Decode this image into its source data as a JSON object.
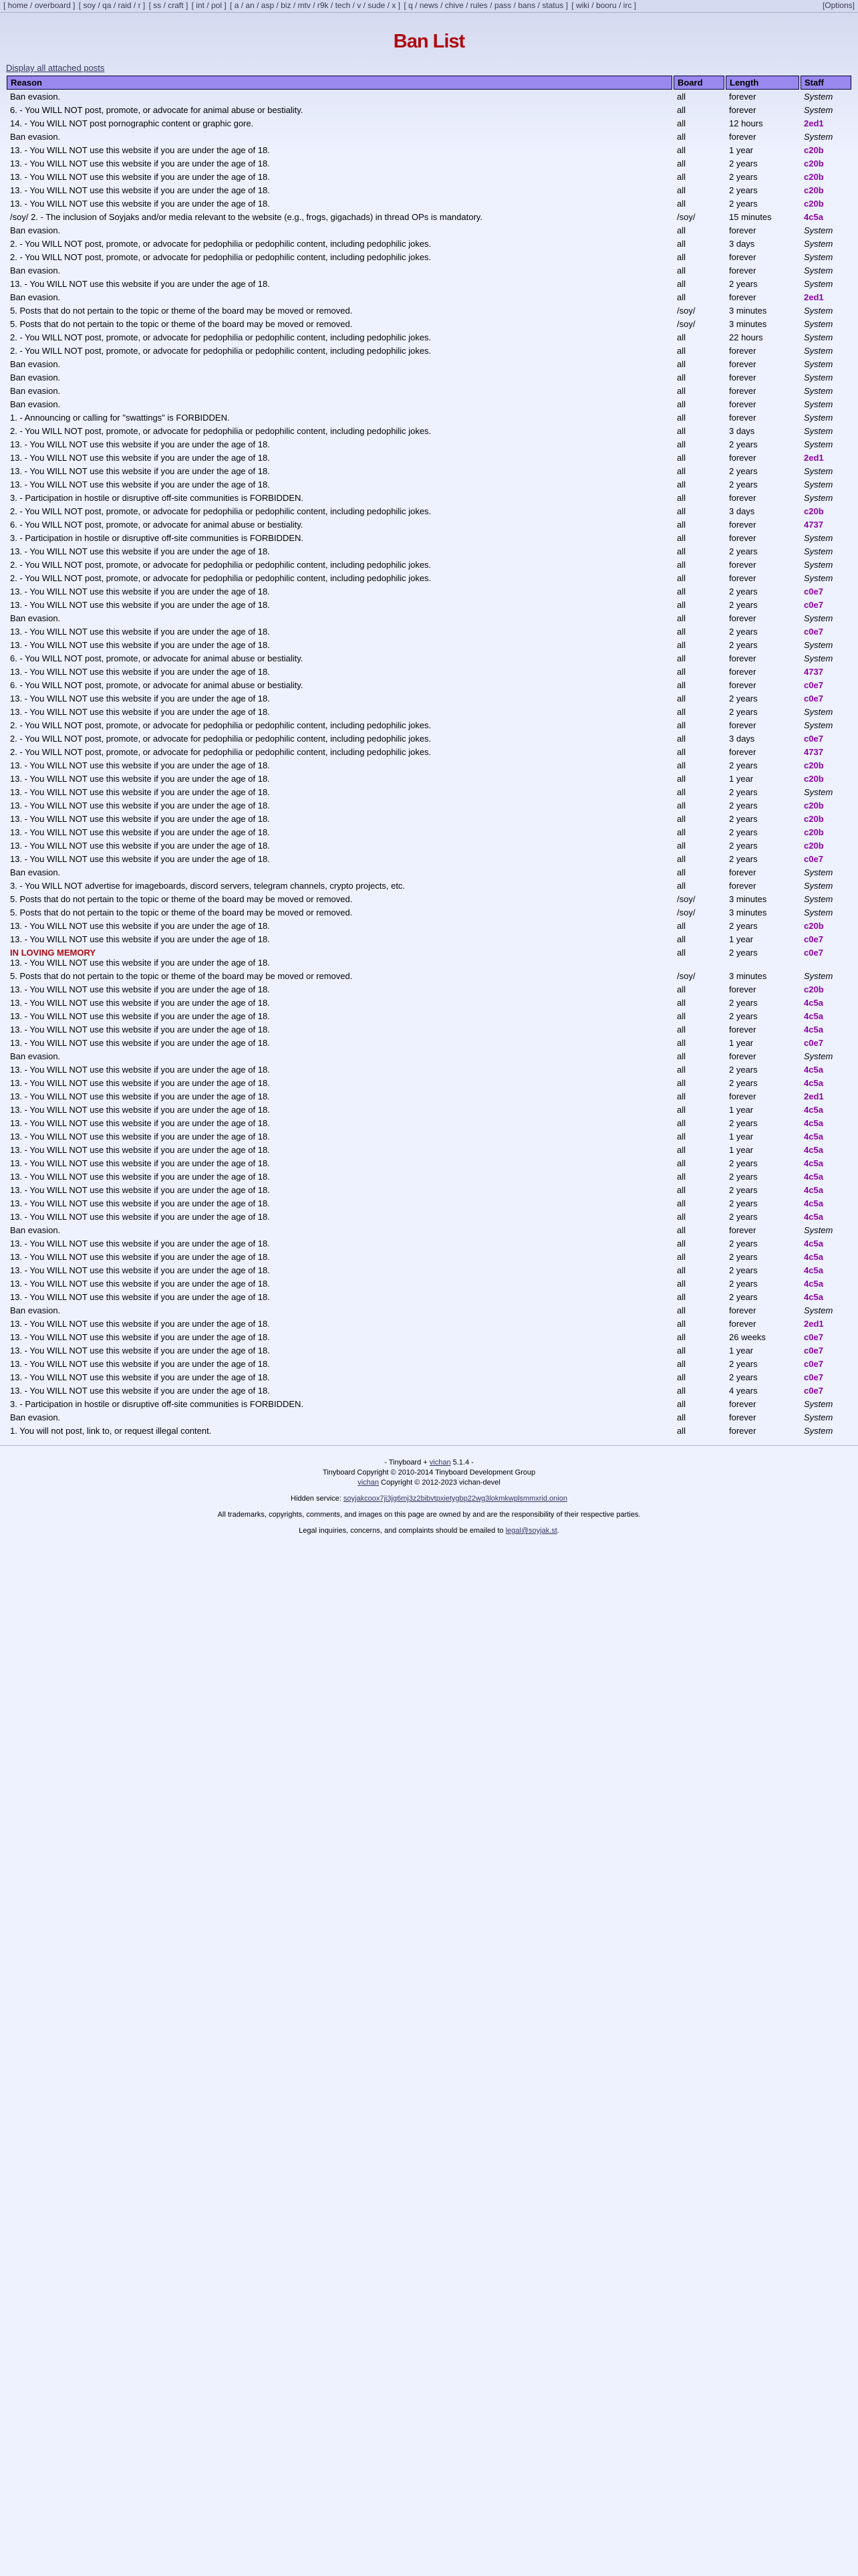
{
  "nav": {
    "groups": [
      [
        "home",
        "overboard"
      ],
      [
        "soy",
        "qa",
        "raid",
        "r"
      ],
      [
        "ss",
        "craft"
      ],
      [
        "int",
        "pol"
      ],
      [
        "a",
        "an",
        "asp",
        "biz",
        "mtv",
        "r9k",
        "tech",
        "v",
        "sude",
        "x"
      ],
      [
        "q",
        "news",
        "chive",
        "rules",
        "pass",
        "bans",
        "status"
      ],
      [
        "wiki",
        "booru",
        "irc"
      ]
    ],
    "options_label": "[Options]"
  },
  "page": {
    "title": "Ban List",
    "display_link": "Display all attached posts"
  },
  "colors": {
    "title": "#AF0A0F",
    "header_bg": "#9988EE",
    "staff_link": "#8C00A5",
    "memorial": "#AF0A0F",
    "page_bg": "#EEF2FF"
  },
  "table": {
    "headers": [
      "Reason",
      "Board",
      "Length",
      "Staff"
    ],
    "memorial_label": "IN LOVING MEMORY",
    "reason_texts": {
      "A": "Ban evasion.",
      "B": "6. - You WILL NOT post, promote, or advocate for animal abuse or bestiality.",
      "C": "14. - You WILL NOT post pornographic content or graphic gore.",
      "D": "13. - You WILL NOT use this website if you are under the age of 18.",
      "E": "/soy/ 2. - The inclusion of Soyjaks and/or media relevant to the website (e.g., frogs, gigachads) in thread OPs is mandatory.",
      "F": "2. - You WILL NOT post, promote, or advocate for pedophilia or pedophilic content, including pedophilic jokes.",
      "G": "5. Posts that do not pertain to the topic or theme of the board may be moved or removed.",
      "H": "1. - Announcing or calling for \"swattings\" is FORBIDDEN.",
      "I": "3. - Participation in hostile or disruptive off-site communities is FORBIDDEN.",
      "J": "3. - You WILL NOT advertise for imageboards, discord servers, telegram channels, crypto projects, etc.",
      "L": "1. You will not post, link to, or request illegal content."
    },
    "rows": [
      [
        "A",
        "all",
        "forever",
        "System"
      ],
      [
        "B",
        "all",
        "forever",
        "System"
      ],
      [
        "C",
        "all",
        "12 hours",
        "2ed1"
      ],
      [
        "A",
        "all",
        "forever",
        "System"
      ],
      [
        "D",
        "all",
        "1 year",
        "c20b"
      ],
      [
        "D",
        "all",
        "2 years",
        "c20b"
      ],
      [
        "D",
        "all",
        "2 years",
        "c20b"
      ],
      [
        "D",
        "all",
        "2 years",
        "c20b"
      ],
      [
        "D",
        "all",
        "2 years",
        "c20b"
      ],
      [
        "E",
        "/soy/",
        "15 minutes",
        "4c5a"
      ],
      [
        "A",
        "all",
        "forever",
        "System"
      ],
      [
        "F",
        "all",
        "3 days",
        "System"
      ],
      [
        "F",
        "all",
        "forever",
        "System"
      ],
      [
        "A",
        "all",
        "forever",
        "System"
      ],
      [
        "D",
        "all",
        "2 years",
        "System"
      ],
      [
        "A",
        "all",
        "forever",
        "2ed1"
      ],
      [
        "G",
        "/soy/",
        "3 minutes",
        "System"
      ],
      [
        "G",
        "/soy/",
        "3 minutes",
        "System"
      ],
      [
        "F",
        "all",
        "22 hours",
        "System"
      ],
      [
        "F",
        "all",
        "forever",
        "System"
      ],
      [
        "A",
        "all",
        "forever",
        "System"
      ],
      [
        "A",
        "all",
        "forever",
        "System"
      ],
      [
        "A",
        "all",
        "forever",
        "System"
      ],
      [
        "A",
        "all",
        "forever",
        "System"
      ],
      [
        "H",
        "all",
        "forever",
        "System"
      ],
      [
        "F",
        "all",
        "3 days",
        "System"
      ],
      [
        "D",
        "all",
        "2 years",
        "System"
      ],
      [
        "D",
        "all",
        "forever",
        "2ed1"
      ],
      [
        "D",
        "all",
        "2 years",
        "System"
      ],
      [
        "D",
        "all",
        "2 years",
        "System"
      ],
      [
        "I",
        "all",
        "forever",
        "System"
      ],
      [
        "F",
        "all",
        "3 days",
        "c20b"
      ],
      [
        "B",
        "all",
        "forever",
        "4737"
      ],
      [
        "I",
        "all",
        "forever",
        "System"
      ],
      [
        "D",
        "all",
        "2 years",
        "System"
      ],
      [
        "F",
        "all",
        "forever",
        "System"
      ],
      [
        "F",
        "all",
        "forever",
        "System"
      ],
      [
        "D",
        "all",
        "2 years",
        "c0e7"
      ],
      [
        "D",
        "all",
        "2 years",
        "c0e7"
      ],
      [
        "A",
        "all",
        "forever",
        "System"
      ],
      [
        "D",
        "all",
        "2 years",
        "c0e7"
      ],
      [
        "D",
        "all",
        "2 years",
        "System"
      ],
      [
        "B",
        "all",
        "forever",
        "System"
      ],
      [
        "D",
        "all",
        "forever",
        "4737"
      ],
      [
        "B",
        "all",
        "forever",
        "c0e7"
      ],
      [
        "D",
        "all",
        "2 years",
        "c0e7"
      ],
      [
        "D",
        "all",
        "2 years",
        "System"
      ],
      [
        "F",
        "all",
        "forever",
        "System"
      ],
      [
        "F",
        "all",
        "3 days",
        "c0e7"
      ],
      [
        "F",
        "all",
        "forever",
        "4737"
      ],
      [
        "D",
        "all",
        "2 years",
        "c20b"
      ],
      [
        "D",
        "all",
        "1 year",
        "c20b"
      ],
      [
        "D",
        "all",
        "2 years",
        "System"
      ],
      [
        "D",
        "all",
        "2 years",
        "c20b"
      ],
      [
        "D",
        "all",
        "2 years",
        "c20b"
      ],
      [
        "D",
        "all",
        "2 years",
        "c20b"
      ],
      [
        "D",
        "all",
        "2 years",
        "c20b"
      ],
      [
        "D",
        "all",
        "2 years",
        "c0e7"
      ],
      [
        "A",
        "all",
        "forever",
        "System"
      ],
      [
        "J",
        "all",
        "forever",
        "System"
      ],
      [
        "G",
        "/soy/",
        "3 minutes",
        "System"
      ],
      [
        "G",
        "/soy/",
        "3 minutes",
        "System"
      ],
      [
        "D",
        "all",
        "2 years",
        "c20b"
      ],
      [
        "D",
        "all",
        "1 year",
        "c0e7"
      ],
      [
        "D",
        "all",
        "2 years",
        "c0e7",
        "M"
      ],
      [
        "G",
        "/soy/",
        "3 minutes",
        "System"
      ],
      [
        "D",
        "all",
        "forever",
        "c20b"
      ],
      [
        "D",
        "all",
        "2 years",
        "4c5a"
      ],
      [
        "D",
        "all",
        "2 years",
        "4c5a"
      ],
      [
        "D",
        "all",
        "forever",
        "4c5a"
      ],
      [
        "D",
        "all",
        "1 year",
        "c0e7"
      ],
      [
        "A",
        "all",
        "forever",
        "System"
      ],
      [
        "D",
        "all",
        "2 years",
        "4c5a"
      ],
      [
        "D",
        "all",
        "2 years",
        "4c5a"
      ],
      [
        "D",
        "all",
        "forever",
        "2ed1"
      ],
      [
        "D",
        "all",
        "1 year",
        "4c5a"
      ],
      [
        "D",
        "all",
        "2 years",
        "4c5a"
      ],
      [
        "D",
        "all",
        "1 year",
        "4c5a"
      ],
      [
        "D",
        "all",
        "1 year",
        "4c5a"
      ],
      [
        "D",
        "all",
        "2 years",
        "4c5a"
      ],
      [
        "D",
        "all",
        "2 years",
        "4c5a"
      ],
      [
        "D",
        "all",
        "2 years",
        "4c5a"
      ],
      [
        "D",
        "all",
        "2 years",
        "4c5a"
      ],
      [
        "D",
        "all",
        "2 years",
        "4c5a"
      ],
      [
        "A",
        "all",
        "forever",
        "System"
      ],
      [
        "D",
        "all",
        "2 years",
        "4c5a"
      ],
      [
        "D",
        "all",
        "2 years",
        "4c5a"
      ],
      [
        "D",
        "all",
        "2 years",
        "4c5a"
      ],
      [
        "D",
        "all",
        "2 years",
        "4c5a"
      ],
      [
        "D",
        "all",
        "2 years",
        "4c5a"
      ],
      [
        "A",
        "all",
        "forever",
        "System"
      ],
      [
        "D",
        "all",
        "forever",
        "2ed1"
      ],
      [
        "D",
        "all",
        "26 weeks",
        "c0e7"
      ],
      [
        "D",
        "all",
        "1 year",
        "c0e7"
      ],
      [
        "D",
        "all",
        "2 years",
        "c0e7"
      ],
      [
        "D",
        "all",
        "2 years",
        "c0e7"
      ],
      [
        "D",
        "all",
        "4 years",
        "c0e7"
      ],
      [
        "I",
        "all",
        "forever",
        "System"
      ],
      [
        "A",
        "all",
        "forever",
        "System"
      ],
      [
        "L",
        "all",
        "forever",
        "System"
      ]
    ]
  },
  "footer": {
    "version_prefix": "- Tinyboard + ",
    "vichan_label": "vichan",
    "version_suffix": " 5.1.4 -",
    "tinyboard_copyright": "Tinyboard Copyright © 2010-2014 Tinyboard Development Group",
    "vichan_copyright_rest": " Copyright © 2012-2023 vichan-devel",
    "hidden_service_label": "Hidden service: ",
    "onion_address": "soyjakcoox7ji3jg6mj3z2bibvtpxietygbp22wg3lokmkwplsmmxrid.onion",
    "trademarks": "All trademarks, copyrights, comments, and images on this page are owned by and are the responsibility of their respective parties.",
    "legal_prefix": "Legal inquiries, concerns, and complaints should be emailed to ",
    "legal_email": "legal@soyjak.st",
    "legal_suffix": "."
  }
}
